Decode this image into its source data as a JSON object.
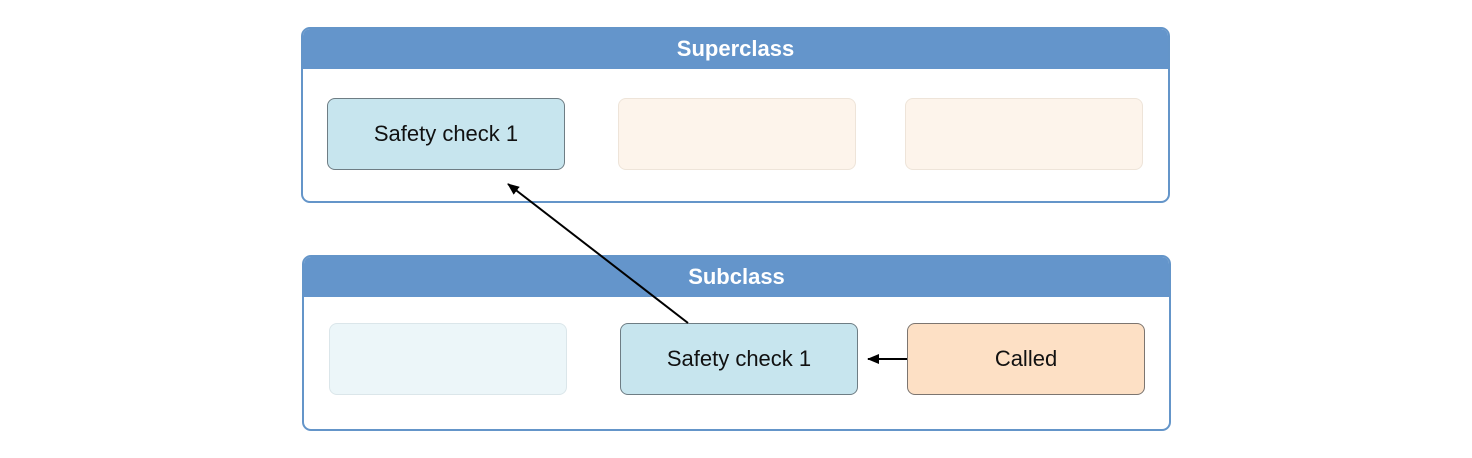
{
  "superclass": {
    "title": "Superclass",
    "steps": [
      {
        "label": "Safety check 1",
        "state": "active"
      },
      {
        "label": "",
        "state": "faded"
      },
      {
        "label": "",
        "state": "faded"
      }
    ]
  },
  "subclass": {
    "title": "Subclass",
    "steps": [
      {
        "label": "",
        "state": "faded"
      },
      {
        "label": "Safety check 1",
        "state": "active"
      },
      {
        "label": "Called",
        "state": "active"
      }
    ]
  },
  "colors": {
    "header": "#6495cb",
    "border": "#6495c9",
    "active_blue": "#c7e5ee",
    "active_peach": "#fde0c5",
    "faded_peach": "#fdf4eb",
    "faded_blue": "#ecf6f9",
    "arrow": "#000000"
  }
}
